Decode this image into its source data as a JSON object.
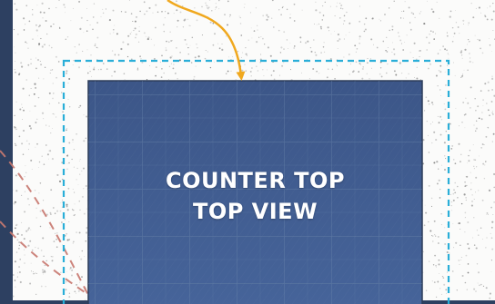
{
  "diagram": {
    "label_line_1": "COUNTER TOP",
    "label_line_2": "TOP VIEW"
  },
  "colors": {
    "background": "#2d4061",
    "speckled_surface": "#fbfbfa",
    "speckle": "#7b7b7b",
    "countertop_panel": "#3f5a8d",
    "grid_line": "#6f89ad",
    "dashed_outline": "#2aaed8",
    "arrow": "#f0a81e",
    "red_dashed_line": "#c87870",
    "label_text": "#ffffff"
  }
}
